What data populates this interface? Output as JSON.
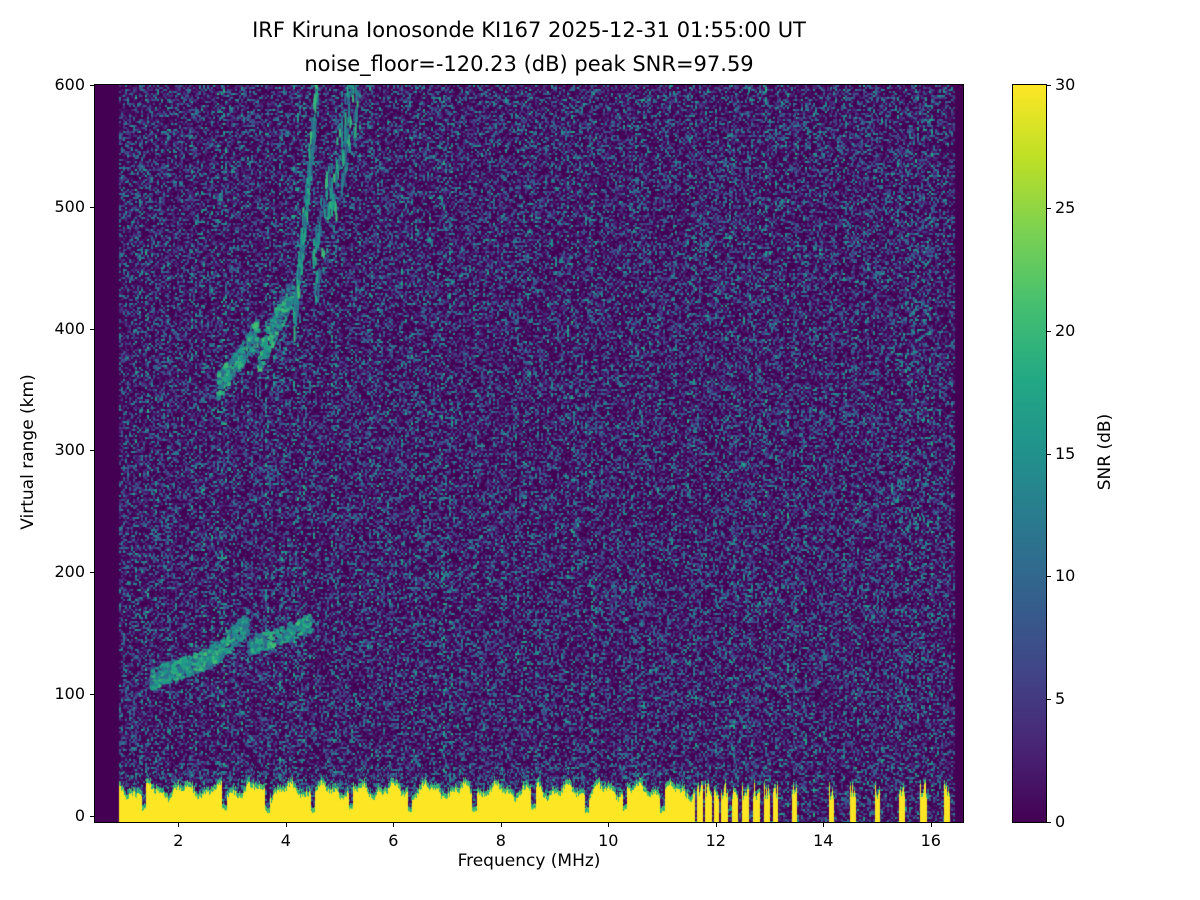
{
  "chart_data": {
    "type": "heatmap",
    "title_line1": "IRF Kiruna Ionosonde KI167 2025-12-31 01:55:00  UT",
    "title_line2": "noise_floor=-120.23 (dB) peak SNR=97.59",
    "station": "IRF Kiruna Ionosonde KI167",
    "timestamp_ut": "2025-12-31 01:55:00",
    "noise_floor_db": -120.23,
    "peak_snr_db": 97.59,
    "xlabel": "Frequency (MHz)",
    "ylabel": "Virtual range (km)",
    "x_range": [
      0.45,
      16.6
    ],
    "y_range": [
      -5,
      600
    ],
    "x_ticks": [
      2,
      4,
      6,
      8,
      10,
      12,
      14,
      16
    ],
    "y_ticks": [
      0,
      100,
      200,
      300,
      400,
      500,
      600
    ],
    "grid": false,
    "colorbar": {
      "label": "SNR (dB)",
      "ticks": [
        0,
        5,
        10,
        15,
        20,
        25,
        30
      ],
      "range": [
        0,
        30
      ],
      "colormap": "viridis",
      "stops": [
        [
          0,
          "#440154"
        ],
        [
          0.1,
          "#482475"
        ],
        [
          0.2,
          "#414487"
        ],
        [
          0.3,
          "#355f8d"
        ],
        [
          0.4,
          "#2a788e"
        ],
        [
          0.5,
          "#21918c"
        ],
        [
          0.6,
          "#22a884"
        ],
        [
          0.7,
          "#44bf70"
        ],
        [
          0.8,
          "#7ad151"
        ],
        [
          0.9,
          "#bddf26"
        ],
        [
          1,
          "#fde725"
        ]
      ]
    },
    "data_extent": {
      "f_start": 0.9,
      "f_end": 16.45
    },
    "features": {
      "noise_speckle": {
        "density": 0.12,
        "snr_max_frac": 0.5
      },
      "ground_band": {
        "f_start": 0.9,
        "f_end": 11.6,
        "base_height_km": 24,
        "height_jitter_km": 9,
        "notch_freqs": [
          1.35,
          2.85,
          3.65,
          4.5,
          5.2,
          6.3,
          7.5,
          8.6,
          9.6,
          10.3,
          11.0
        ]
      },
      "sporadic_ground_stripes": [
        11.7,
        11.85,
        12.0,
        12.15,
        12.35,
        12.55,
        12.75,
        12.95,
        13.1,
        13.45,
        14.15,
        14.55,
        15.0,
        15.45,
        15.85,
        16.3
      ],
      "rfi_stripes": [
        11.7,
        12.0,
        12.35,
        12.6,
        12.95,
        13.45,
        14.15,
        14.55,
        15.0,
        15.45,
        15.85
      ],
      "e_trace": [
        {
          "f0": 1.5,
          "f1": 2.5,
          "r0": 112,
          "r1": 128,
          "density": 0.55,
          "spread_km": 16
        },
        {
          "f0": 2.5,
          "f1": 3.3,
          "r0": 125,
          "r1": 158,
          "density": 0.45,
          "spread_km": 18
        },
        {
          "f0": 3.3,
          "f1": 4.5,
          "r0": 138,
          "r1": 158,
          "density": 0.3,
          "spread_km": 14
        }
      ],
      "f_trace": [
        {
          "f0": 2.75,
          "f1": 3.5,
          "r0": 352,
          "r1": 398,
          "density": 0.5,
          "spread_km": 20
        },
        {
          "f0": 3.5,
          "f1": 4.15,
          "r0": 375,
          "r1": 432,
          "density": 0.45,
          "spread_km": 24
        },
        {
          "f0": 4.15,
          "f1": 4.6,
          "r0": 400,
          "r1": 600,
          "density": 0.55,
          "spread_km": 35
        },
        {
          "f0": 4.5,
          "f1": 5.35,
          "r0": 440,
          "r1": 600,
          "density": 0.25,
          "spread_km": 70
        }
      ],
      "faint_blobs": [
        {
          "f": 9.65,
          "r": 332,
          "w": 0.35,
          "h": 30,
          "density": 0.3
        },
        {
          "f": 12.35,
          "r": 255,
          "w": 0.2,
          "h": 45,
          "density": 0.2
        }
      ]
    }
  }
}
